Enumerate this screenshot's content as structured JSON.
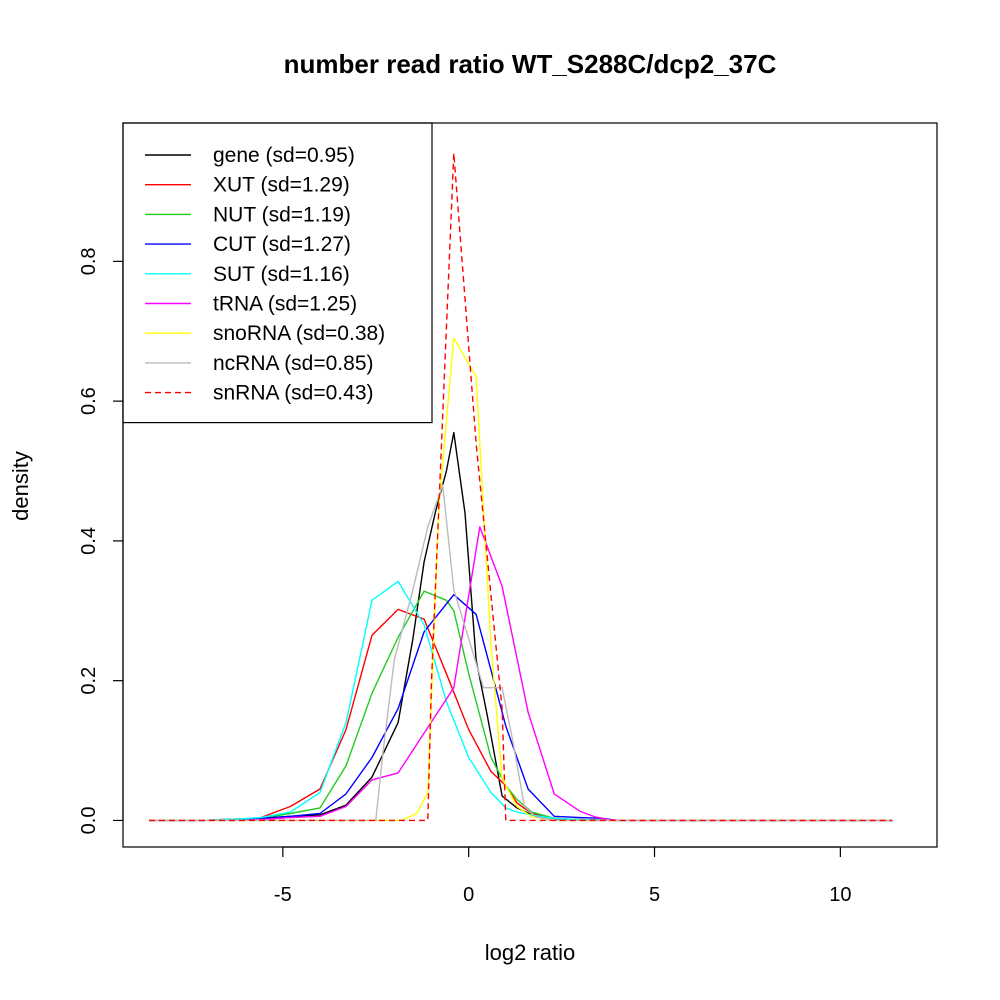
{
  "chart_data": {
    "type": "line",
    "title": "number read ratio WT_S288C/dcp2_37C",
    "xlabel": "log2 ratio",
    "ylabel": "density",
    "xlim": [
      -9.3,
      12.6
    ],
    "ylim": [
      -0.038,
      0.998
    ],
    "x_ticks": [
      -5,
      0,
      5,
      10
    ],
    "y_ticks": [
      0.0,
      0.2,
      0.4,
      0.6,
      0.8
    ],
    "x_tick_labels": [
      "-5",
      "0",
      "5",
      "10"
    ],
    "y_tick_labels": [
      "0.0",
      "0.2",
      "0.4",
      "0.6",
      "0.8"
    ],
    "grid": false,
    "legend_position": "top-left",
    "series": [
      {
        "name": "gene (sd=0.95)",
        "color": "#000000",
        "dash": "solid",
        "x": [
          -8.6,
          -7.2,
          -6.2,
          -5.6,
          -4.8,
          -4.0,
          -3.3,
          -2.6,
          -1.9,
          -1.5,
          -1.2,
          -0.9,
          -0.6,
          -0.4,
          -0.1,
          0.2,
          0.5,
          0.9,
          1.3,
          1.7,
          2.4,
          3.2,
          4.0,
          11.4
        ],
        "y": [
          0.0,
          0.0,
          0.002,
          0.003,
          0.006,
          0.008,
          0.022,
          0.062,
          0.14,
          0.26,
          0.37,
          0.44,
          0.5,
          0.555,
          0.44,
          0.23,
          0.15,
          0.035,
          0.018,
          0.008,
          0.002,
          0.001,
          0.0,
          0.0
        ]
      },
      {
        "name": "XUT (sd=1.29)",
        "color": "#ff0000",
        "dash": "solid",
        "x": [
          -8.6,
          -7.2,
          -6.2,
          -5.6,
          -4.8,
          -4.0,
          -3.3,
          -2.6,
          -1.9,
          -1.2,
          -0.6,
          0.0,
          0.6,
          1.0,
          1.3,
          1.7,
          2.3,
          3.0,
          4.0,
          11.4
        ],
        "y": [
          0.0,
          0.0,
          0.001,
          0.004,
          0.02,
          0.045,
          0.13,
          0.265,
          0.302,
          0.288,
          0.21,
          0.13,
          0.07,
          0.05,
          0.025,
          0.01,
          0.003,
          0.001,
          0.0,
          0.0
        ]
      },
      {
        "name": "NUT (sd=1.19)",
        "color": "#22cc22",
        "dash": "solid",
        "x": [
          -8.6,
          -7.2,
          -6.2,
          -5.6,
          -4.8,
          -4.0,
          -3.3,
          -2.6,
          -1.9,
          -1.2,
          -0.6,
          -0.4,
          0.0,
          0.6,
          1.0,
          1.3,
          1.7,
          2.3,
          3.0,
          4.0,
          11.4
        ],
        "y": [
          0.0,
          0.0,
          0.001,
          0.003,
          0.01,
          0.018,
          0.078,
          0.182,
          0.262,
          0.328,
          0.315,
          0.3,
          0.21,
          0.09,
          0.05,
          0.03,
          0.012,
          0.003,
          0.001,
          0.0,
          0.0
        ]
      },
      {
        "name": "CUT (sd=1.27)",
        "color": "#0000ff",
        "dash": "solid",
        "x": [
          -8.6,
          -7.2,
          -6.2,
          -5.6,
          -4.8,
          -4.0,
          -3.3,
          -2.6,
          -1.9,
          -1.2,
          -0.4,
          0.2,
          0.6,
          1.0,
          1.6,
          2.3,
          3.0,
          3.6,
          4.0,
          11.4
        ],
        "y": [
          0.0,
          0.0,
          0.001,
          0.003,
          0.006,
          0.01,
          0.038,
          0.09,
          0.16,
          0.27,
          0.323,
          0.295,
          0.215,
          0.135,
          0.045,
          0.006,
          0.004,
          0.003,
          0.0,
          0.0
        ]
      },
      {
        "name": "SUT (sd=1.16)",
        "color": "#00ffff",
        "dash": "solid",
        "x": [
          -8.6,
          -7.2,
          -6.2,
          -5.6,
          -4.8,
          -4.0,
          -3.3,
          -2.6,
          -1.9,
          -1.2,
          -0.6,
          0.0,
          0.6,
          1.0,
          1.3,
          1.7,
          2.3,
          3.0,
          4.0,
          11.4
        ],
        "y": [
          0.0,
          0.0,
          0.002,
          0.004,
          0.012,
          0.04,
          0.14,
          0.315,
          0.342,
          0.28,
          0.17,
          0.09,
          0.04,
          0.018,
          0.012,
          0.008,
          0.003,
          0.001,
          0.0,
          0.0
        ]
      },
      {
        "name": "tRNA (sd=1.25)",
        "color": "#ff00ff",
        "dash": "solid",
        "x": [
          -8.6,
          -7.2,
          -6.2,
          -5.6,
          -4.8,
          -4.0,
          -3.3,
          -2.6,
          -1.9,
          -1.2,
          -0.4,
          0.3,
          0.9,
          1.6,
          2.3,
          3.0,
          3.4,
          3.8,
          4.2,
          11.4
        ],
        "y": [
          0.0,
          0.0,
          0.0,
          0.001,
          0.004,
          0.006,
          0.02,
          0.058,
          0.068,
          0.125,
          0.19,
          0.42,
          0.335,
          0.155,
          0.038,
          0.013,
          0.005,
          0.001,
          0.0,
          0.0
        ]
      },
      {
        "name": "snoRNA (sd=0.38)",
        "color": "#ffff00",
        "dash": "solid",
        "x": [
          -8.6,
          -2.0,
          -1.8,
          -1.4,
          -1.1,
          -0.8,
          -0.4,
          0.2,
          0.6,
          0.9,
          1.3,
          1.7,
          2.3,
          11.4
        ],
        "y": [
          0.0,
          0.0,
          0.0,
          0.01,
          0.04,
          0.45,
          0.69,
          0.635,
          0.25,
          0.06,
          0.02,
          0.005,
          0.0,
          0.0
        ]
      },
      {
        "name": "ncRNA (sd=0.85)",
        "color": "#bbbbbb",
        "dash": "solid",
        "x": [
          -8.6,
          -2.5,
          -2.3,
          -2.0,
          -1.5,
          -1.1,
          -0.7,
          -0.4,
          0.0,
          0.4,
          0.9,
          1.2,
          1.5,
          1.8,
          2.3,
          11.4
        ],
        "y": [
          0.0,
          0.0,
          0.1,
          0.23,
          0.33,
          0.42,
          0.48,
          0.33,
          0.26,
          0.19,
          0.19,
          0.11,
          0.02,
          0.005,
          0.0,
          0.0
        ]
      },
      {
        "name": "snRNA (sd=0.43)",
        "color": "#ff0000",
        "dash": "dashed",
        "x": [
          -8.6,
          -1.1,
          -1.0,
          -0.4,
          0.2,
          0.9,
          1.0,
          11.4
        ],
        "y": [
          0.0,
          0.0,
          0.2,
          0.955,
          0.54,
          0.16,
          0.0,
          0.0
        ]
      }
    ]
  }
}
